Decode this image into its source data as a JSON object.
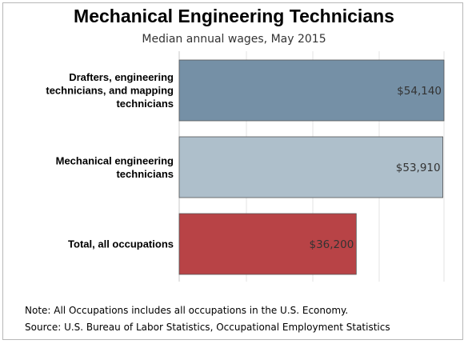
{
  "chart_data": {
    "type": "bar",
    "orientation": "horizontal",
    "title": "Mechanical Engineering Technicians",
    "subtitle": "Median annual wages, May 2015",
    "categories": [
      [
        "Drafters, engineering",
        "technicians, and mapping",
        "technicians"
      ],
      [
        "Mechanical engineering",
        "technicians"
      ],
      [
        "Total, all occupations"
      ]
    ],
    "values": [
      54140,
      53910,
      36200
    ],
    "value_labels": [
      "$54,140",
      "$53,910",
      "$36,200"
    ],
    "colors": [
      "#7590a6",
      "#aebfcb",
      "#b84346"
    ],
    "xlim": [
      0,
      54140
    ],
    "grid": true,
    "xlabel": "",
    "ylabel": ""
  },
  "notes": {
    "note": "Note: All Occupations includes all occupations in the U.S. Economy.",
    "source": "Source: U.S. Bureau of Labor Statistics, Occupational Employment Statistics"
  }
}
